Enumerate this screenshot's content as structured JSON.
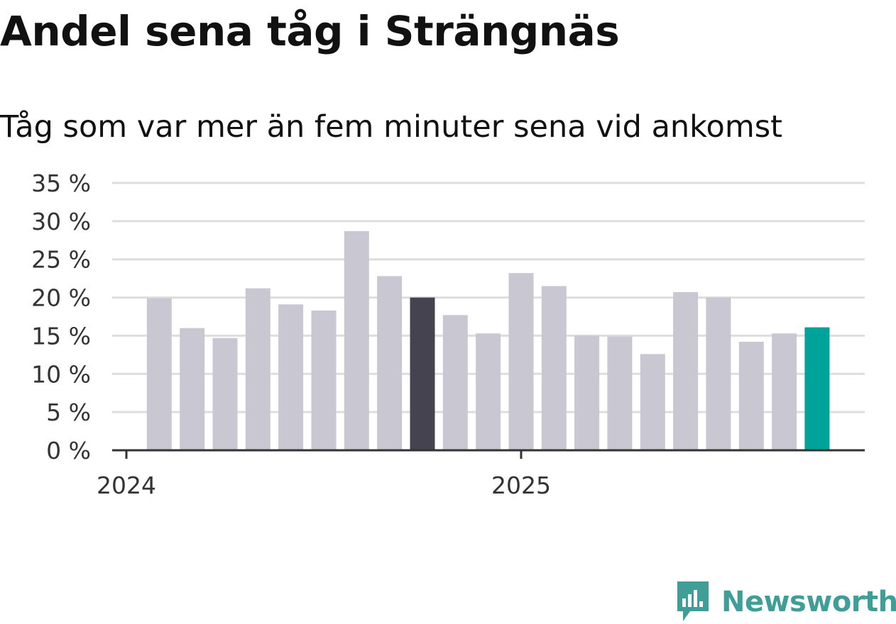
{
  "header": {
    "title": "Andel sena tåg i Strängnäs",
    "subtitle": "Tåg som var mer än fem minuter sena vid ankomst"
  },
  "branding": {
    "logo_text": "Newsworthy",
    "logo_color": "#3f9e97"
  },
  "colors": {
    "bar": "#c9c8d2",
    "highlight_dark": "#45434f",
    "highlight_accent": "#00a39a",
    "grid": "#dddddd",
    "axis": "#333333"
  },
  "chart_data": {
    "type": "bar",
    "x_tick_labels": [
      "2024",
      "2025"
    ],
    "x_tick_months": [
      "2024-01",
      "2025-01"
    ],
    "y_tick_labels": [
      "0 %",
      "5 %",
      "10 %",
      "15 %",
      "20 %",
      "25 %",
      "30 %",
      "35 %"
    ],
    "ylim": [
      0,
      35
    ],
    "grid": true,
    "categories": [
      "2024-02",
      "2024-03",
      "2024-04",
      "2024-05",
      "2024-06",
      "2024-07",
      "2024-08",
      "2024-09",
      "2024-10",
      "2024-11",
      "2024-12",
      "2025-01",
      "2025-02",
      "2025-03",
      "2025-04",
      "2025-05",
      "2025-06",
      "2025-07",
      "2025-08",
      "2025-09",
      "2025-10",
      "2025-11"
    ],
    "values": [
      19.9,
      16.0,
      14.7,
      21.2,
      19.1,
      18.3,
      28.7,
      22.8,
      20.0,
      17.7,
      15.3,
      23.2,
      21.5,
      15.0,
      14.9,
      12.6,
      20.7,
      20.0,
      14.2,
      15.3,
      16.1,
      0
    ],
    "highlight_dark": [
      "2024-10"
    ],
    "highlight_accent": [
      "2025-10"
    ]
  }
}
